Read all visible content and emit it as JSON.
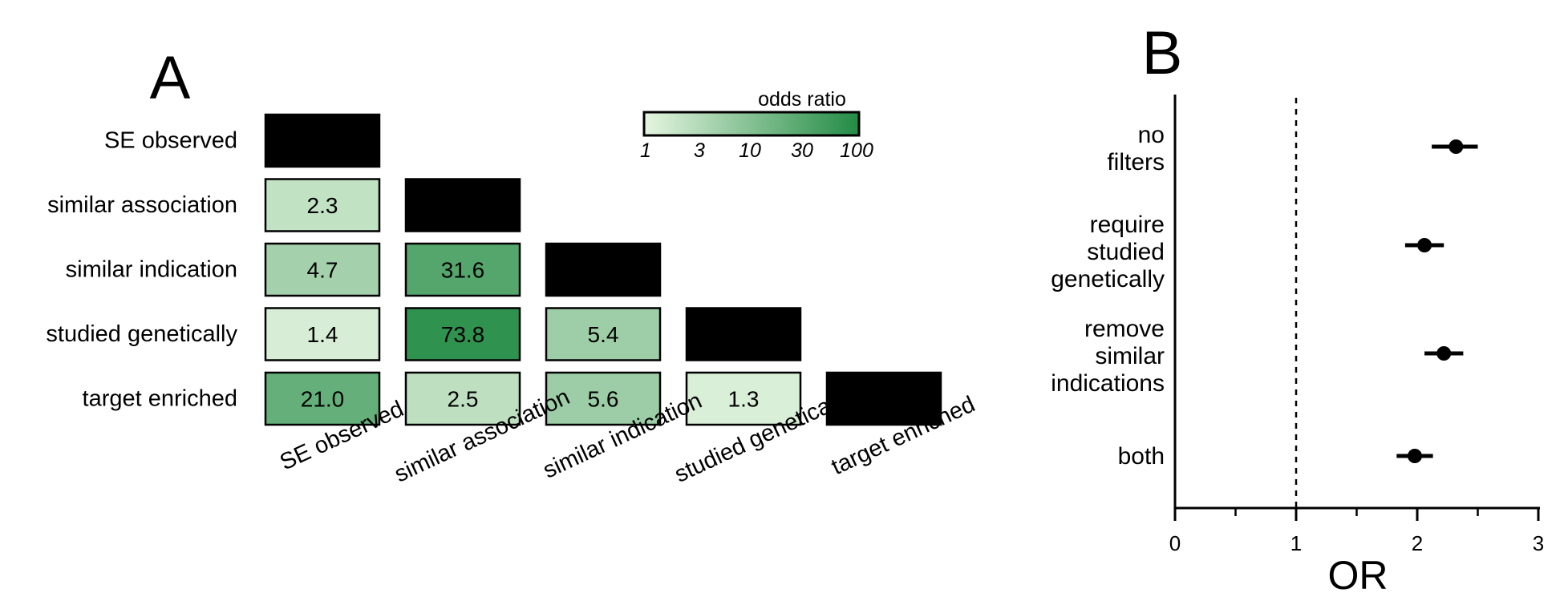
{
  "panel_a": {
    "letter": "A",
    "legend": {
      "title": "odds ratio",
      "ticks": [
        "1",
        "3",
        "10",
        "30",
        "100"
      ],
      "low_color": "#e5f5e0",
      "high_color": "#238b45"
    }
  },
  "panel_b": {
    "letter": "B",
    "xlabel": "OR"
  },
  "chart_data": [
    {
      "type": "heatmap",
      "title": "",
      "rows": [
        "SE observed",
        "similar association",
        "similar indication",
        "studied genetically",
        "target enriched"
      ],
      "columns": [
        "SE observed",
        "similar association",
        "similar indication",
        "studied genetically",
        "target enriched"
      ],
      "values": [
        [
          null,
          null,
          null,
          null,
          null
        ],
        [
          2.3,
          null,
          null,
          null,
          null
        ],
        [
          4.7,
          31.6,
          null,
          null,
          null
        ],
        [
          1.4,
          73.8,
          5.4,
          null,
          null
        ],
        [
          21.0,
          2.5,
          5.6,
          1.3,
          null
        ]
      ],
      "value_labels": [
        [
          null,
          null,
          null,
          null,
          null
        ],
        [
          "2.3",
          null,
          null,
          null,
          null
        ],
        [
          "4.7",
          "31.6",
          null,
          null,
          null
        ],
        [
          "1.4",
          "73.8",
          "5.4",
          null,
          null
        ],
        [
          "21.0",
          "2.5",
          "5.6",
          "1.3",
          null
        ]
      ],
      "diagonal_color": "#000000",
      "color_scale": "log",
      "color_range": [
        1,
        100
      ],
      "legend": "top-right"
    },
    {
      "type": "scatter",
      "title": "",
      "xlabel": "OR",
      "ylabel": "",
      "categories": [
        "no\nfilters",
        "require\nstudied\ngenetically",
        "remove\nsimilar\nindications",
        "both"
      ],
      "values": [
        2.32,
        2.06,
        2.22,
        1.98
      ],
      "ci_low": [
        2.12,
        1.9,
        2.06,
        1.83
      ],
      "ci_high": [
        2.5,
        2.22,
        2.38,
        2.13
      ],
      "xlim": [
        0,
        3
      ],
      "xticks": [
        "0",
        "1",
        "2",
        "3"
      ],
      "reference_line": 1,
      "grid": false
    }
  ]
}
